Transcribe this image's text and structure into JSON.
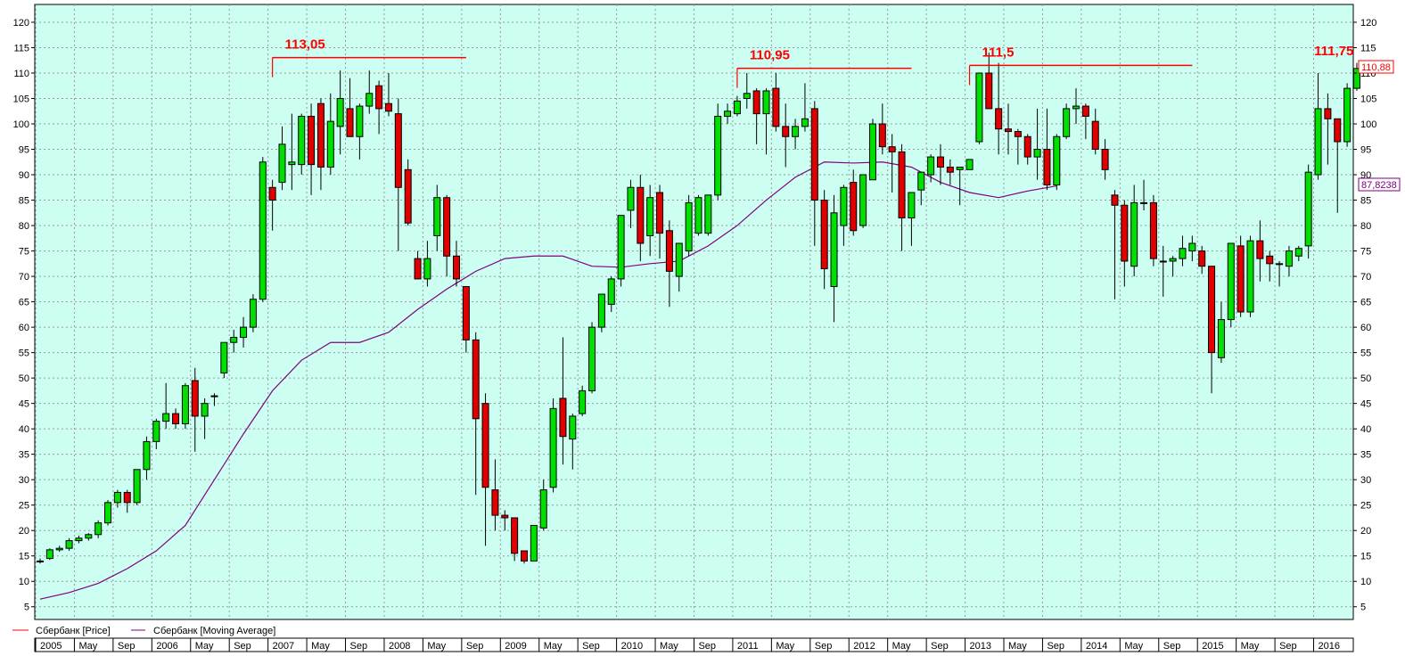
{
  "chart_data": {
    "type": "candlestick",
    "y_axis": {
      "ticks": [
        5,
        10,
        15,
        20,
        25,
        30,
        35,
        40,
        45,
        50,
        55,
        60,
        65,
        70,
        75,
        80,
        85,
        90,
        95,
        100,
        105,
        110,
        115,
        120
      ],
      "ylim": [
        2.5,
        123.5
      ],
      "grid": true
    },
    "x_axis": {
      "labels": [
        "2005",
        "May",
        "Sep",
        "2006",
        "May",
        "Sep",
        "2007",
        "May",
        "Sep",
        "2008",
        "May",
        "Sep",
        "2009",
        "May",
        "Sep",
        "2010",
        "May",
        "Sep",
        "2011",
        "May",
        "Sep",
        "2012",
        "May",
        "Sep",
        "2013",
        "May",
        "Sep",
        "2014",
        "May",
        "Sep",
        "2015",
        "May",
        "Sep",
        "2016"
      ],
      "grid": true
    },
    "legend": [
      {
        "name": "Сбербанк [Price]",
        "color": "#ff0000"
      },
      {
        "name": "Сбербанк [Moving Average]",
        "color": "#800080"
      }
    ],
    "last_price_label": "110,88",
    "last_ma_label": "87,8238",
    "annotations": [
      {
        "text": "113,05",
        "value": 113.05,
        "from_month": 24,
        "to_month": 44
      },
      {
        "text": "110,95",
        "value": 110.95,
        "from_month": 72,
        "to_month": 90
      },
      {
        "text": "111,5",
        "value": 111.5,
        "from_month": 96,
        "to_month": 119
      },
      {
        "text": "111,75",
        "value": 111.75,
        "from_month": 134,
        "to_month": 134
      }
    ],
    "candles_ohlc": [
      [
        14,
        14.5,
        13.5,
        14
      ],
      [
        14.5,
        16.5,
        14.2,
        16.2
      ],
      [
        16.2,
        17,
        15.8,
        16.5
      ],
      [
        16.5,
        18.5,
        16,
        18
      ],
      [
        18,
        19,
        17.5,
        18.5
      ],
      [
        18.5,
        19.5,
        18,
        19.2
      ],
      [
        19.2,
        22,
        18.5,
        21.5
      ],
      [
        21.5,
        26,
        21,
        25.5
      ],
      [
        25.5,
        28,
        24.5,
        27.5
      ],
      [
        27.5,
        28,
        23.5,
        25.5
      ],
      [
        25.5,
        32,
        25,
        32
      ],
      [
        32,
        38.5,
        30,
        37.5
      ],
      [
        37.5,
        42,
        36,
        41.5
      ],
      [
        41.5,
        49,
        40,
        43
      ],
      [
        43,
        44,
        40,
        41
      ],
      [
        41,
        49,
        40,
        48.5
      ],
      [
        49.5,
        52,
        35.5,
        42.5
      ],
      [
        42.5,
        46,
        38,
        45
      ],
      [
        46.5,
        47,
        44.5,
        46.5
      ],
      [
        51,
        57,
        50,
        57
      ],
      [
        57,
        59.5,
        55,
        58
      ],
      [
        58,
        62,
        56,
        60
      ],
      [
        60,
        66.5,
        59,
        65.5
      ],
      [
        65.5,
        93.5,
        65,
        92.5
      ],
      [
        87.5,
        89,
        79,
        85
      ],
      [
        88.5,
        99.5,
        87,
        96
      ],
      [
        92,
        102,
        87,
        92.5
      ],
      [
        92,
        102,
        90,
        101.5
      ],
      [
        101.5,
        104,
        86,
        92
      ],
      [
        104,
        105,
        87,
        91.5
      ],
      [
        91.5,
        106,
        90,
        100.5
      ],
      [
        99.5,
        110.5,
        94,
        105
      ],
      [
        103,
        109,
        98.5,
        97.5
      ],
      [
        97.5,
        104,
        93,
        103.5
      ],
      [
        103.5,
        110.5,
        102,
        106
      ],
      [
        107.5,
        108.5,
        98,
        103
      ],
      [
        104,
        110,
        101.5,
        102.5
      ],
      [
        102,
        105,
        75,
        87.5
      ],
      [
        91,
        93,
        80,
        80.5
      ],
      [
        73.5,
        75,
        71,
        69.5
      ],
      [
        69.5,
        77,
        68,
        73.5
      ],
      [
        78,
        88,
        75,
        85.5
      ],
      [
        85.5,
        86,
        70,
        74
      ],
      [
        74,
        77,
        68,
        69.5
      ],
      [
        68,
        68,
        55,
        57.5
      ],
      [
        57.5,
        59,
        27,
        42
      ],
      [
        45,
        47,
        17,
        28.5
      ],
      [
        28,
        34,
        20,
        23
      ],
      [
        23,
        24,
        20,
        22.5
      ],
      [
        22.5,
        22,
        14,
        15.5
      ],
      [
        16,
        16,
        13.5,
        14
      ],
      [
        14,
        21,
        14,
        21
      ],
      [
        20.5,
        30,
        20,
        28
      ],
      [
        28.5,
        46,
        27.5,
        44
      ],
      [
        46,
        58,
        33,
        38.5
      ],
      [
        38,
        43,
        32,
        42.5
      ],
      [
        43,
        48.5,
        42.5,
        47.5
      ],
      [
        47.5,
        61,
        47,
        60
      ],
      [
        60,
        66.5,
        59,
        66.5
      ],
      [
        64.5,
        70,
        63,
        69.5
      ],
      [
        69.5,
        81,
        68,
        82
      ],
      [
        83,
        89,
        79.5,
        87.5
      ],
      [
        87.5,
        90,
        73,
        76.5
      ],
      [
        78,
        88,
        74,
        85.5
      ],
      [
        86.5,
        88,
        73.5,
        78.5
      ],
      [
        79,
        81,
        64,
        71
      ],
      [
        70,
        75,
        67,
        76.5
      ],
      [
        75,
        86,
        74,
        84.5
      ],
      [
        78.5,
        86,
        78,
        85.5
      ],
      [
        78.5,
        86,
        78,
        86
      ],
      [
        86,
        104,
        85,
        101.5
      ],
      [
        101.5,
        104,
        100,
        102.5
      ],
      [
        102,
        105.5,
        101.5,
        104.5
      ],
      [
        105,
        110,
        103,
        106
      ],
      [
        106.5,
        107,
        96,
        102
      ],
      [
        102,
        107,
        94,
        106.5
      ],
      [
        107,
        110,
        98.5,
        99.5
      ],
      [
        99.5,
        104,
        91.5,
        97.5
      ],
      [
        97.5,
        101,
        95,
        99.5
      ],
      [
        99.5,
        108,
        98.5,
        101
      ],
      [
        103,
        104.5,
        76,
        85
      ],
      [
        85,
        87,
        67.5,
        71.5
      ],
      [
        68,
        86,
        61,
        82.5
      ],
      [
        80,
        88,
        76,
        87.5
      ],
      [
        88.5,
        91,
        78,
        79
      ],
      [
        80,
        89,
        79.5,
        90
      ],
      [
        89,
        101,
        89,
        100
      ],
      [
        100,
        104,
        94,
        95.5
      ],
      [
        95.5,
        98,
        86.5,
        94.5
      ],
      [
        94.5,
        96,
        75,
        81.5
      ],
      [
        81.5,
        86,
        76,
        86.5
      ],
      [
        87,
        88,
        84,
        90.5
      ],
      [
        90,
        94,
        88.5,
        93.5
      ],
      [
        93.5,
        96,
        88,
        91.5
      ],
      [
        91.5,
        93,
        88,
        90.5
      ],
      [
        91,
        91,
        84,
        91.5
      ],
      [
        91,
        92.5,
        91,
        93
      ],
      [
        96.5,
        110,
        96,
        110
      ],
      [
        110,
        114,
        103,
        103
      ],
      [
        103,
        112,
        94,
        99
      ],
      [
        99,
        104,
        94,
        98.5
      ],
      [
        98.5,
        99,
        92,
        97.5
      ],
      [
        97.5,
        98,
        92,
        93.5
      ],
      [
        93.5,
        103,
        89,
        95
      ],
      [
        95,
        103,
        87,
        88
      ],
      [
        88,
        98,
        87,
        97.5
      ],
      [
        97.5,
        104,
        97,
        103
      ],
      [
        103,
        107,
        100,
        103.5
      ],
      [
        103.5,
        104,
        97,
        101.5
      ],
      [
        100.5,
        103,
        94,
        95
      ],
      [
        95,
        97,
        89,
        91
      ],
      [
        86,
        87,
        65.5,
        84
      ],
      [
        84,
        85,
        68,
        73
      ],
      [
        72,
        88,
        70,
        84.5
      ],
      [
        84.5,
        89,
        83,
        84.5
      ],
      [
        84.5,
        86,
        72,
        73.5
      ],
      [
        73,
        76,
        66,
        73
      ],
      [
        73,
        74,
        70,
        73.5
      ],
      [
        73.5,
        78,
        72,
        75.5
      ],
      [
        75,
        78,
        73,
        76.5
      ],
      [
        75,
        76,
        70.5,
        72
      ],
      [
        72,
        72,
        47,
        55
      ],
      [
        54,
        65,
        53,
        61.5
      ],
      [
        61.5,
        76,
        60,
        76.5
      ],
      [
        76,
        78,
        62,
        63
      ],
      [
        63,
        78,
        62,
        77
      ],
      [
        77,
        81,
        69,
        73.5
      ],
      [
        74,
        75,
        69,
        72.5
      ],
      [
        72.5,
        73,
        68,
        72.5
      ],
      [
        72,
        76,
        70,
        75
      ],
      [
        74,
        76,
        73,
        75.5
      ],
      [
        76,
        92,
        73.5,
        90.5
      ],
      [
        90,
        110,
        89,
        103
      ],
      [
        103,
        106,
        92,
        101
      ],
      [
        101,
        101,
        82.5,
        96.5
      ],
      [
        96.5,
        108,
        95.5,
        107
      ],
      [
        107,
        112,
        106.5,
        110.9
      ]
    ],
    "moving_average": [
      [
        0,
        6.5
      ],
      [
        6,
        7.8
      ],
      [
        12,
        9.6
      ],
      [
        18,
        12.5
      ],
      [
        24,
        16
      ],
      [
        30,
        21
      ],
      [
        36,
        30
      ],
      [
        42,
        39
      ],
      [
        48,
        47.5
      ],
      [
        54,
        53.5
      ],
      [
        60,
        57
      ],
      [
        66,
        57
      ],
      [
        72,
        59
      ],
      [
        78,
        63.5
      ],
      [
        84,
        67.5
      ],
      [
        90,
        71
      ],
      [
        96,
        73.5
      ],
      [
        102,
        74
      ],
      [
        108,
        74
      ],
      [
        114,
        72
      ],
      [
        120,
        71.8
      ],
      [
        126,
        72.5
      ],
      [
        132,
        73
      ],
      [
        138,
        76
      ],
      [
        144,
        80
      ],
      [
        150,
        85
      ],
      [
        156,
        89.5
      ],
      [
        162,
        92.5
      ],
      [
        168,
        92.3
      ],
      [
        174,
        92.5
      ],
      [
        180,
        91.5
      ],
      [
        186,
        88.5
      ],
      [
        192,
        86.5
      ],
      [
        198,
        85.5
      ],
      [
        204,
        86.8
      ],
      [
        210,
        87.8
      ]
    ],
    "ma_x_scale_note": "",
    "ma_points_per_month": 0.5
  }
}
